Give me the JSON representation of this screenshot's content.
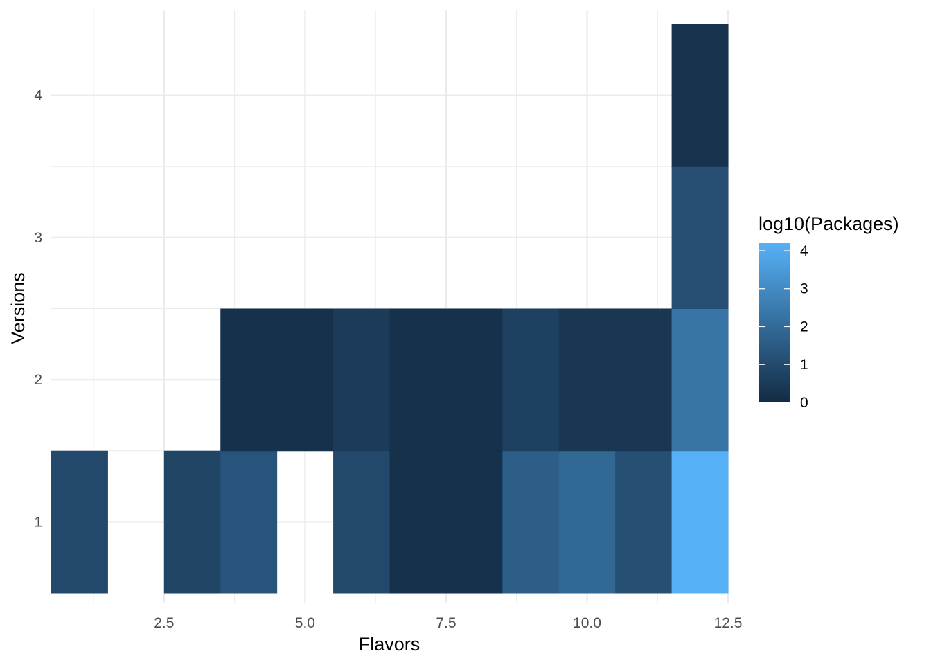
{
  "chart_data": {
    "type": "heatmap",
    "title": "",
    "xlabel": "Flavors",
    "ylabel": "Versions",
    "xlim": [
      0.5,
      12.5
    ],
    "ylim": [
      0.5,
      4.5
    ],
    "x_ticks": [
      {
        "value": 2.5,
        "label": "2.5"
      },
      {
        "value": 5.0,
        "label": "5.0"
      },
      {
        "value": 7.5,
        "label": "7.5"
      },
      {
        "value": 10.0,
        "label": "10.0"
      },
      {
        "value": 12.5,
        "label": "12.5"
      }
    ],
    "x_minor": [
      1.25,
      3.75,
      6.25,
      8.75,
      11.25
    ],
    "y_ticks": [
      {
        "value": 1,
        "label": "1"
      },
      {
        "value": 2,
        "label": "2"
      },
      {
        "value": 3,
        "label": "3"
      },
      {
        "value": 4,
        "label": "4"
      }
    ],
    "y_minor": [
      1.5,
      2.5,
      3.5
    ],
    "grid": true,
    "fill_label": "log10(Packages)",
    "color_scale": {
      "low": "#132B43",
      "high": "#56B1F7",
      "min": 0,
      "max": 4.2
    },
    "legend": {
      "title": "log10(Packages)",
      "position": "right",
      "breaks": [
        {
          "value": 0,
          "label": "0"
        },
        {
          "value": 1,
          "label": "1"
        },
        {
          "value": 2,
          "label": "2"
        },
        {
          "value": 3,
          "label": "3"
        },
        {
          "value": 4,
          "label": "4"
        }
      ]
    },
    "cells": [
      {
        "x": 1,
        "y": 1,
        "value": 0.95
      },
      {
        "x": 3,
        "y": 1,
        "value": 0.8
      },
      {
        "x": 4,
        "y": 1,
        "value": 1.3
      },
      {
        "x": 6,
        "y": 1,
        "value": 0.95
      },
      {
        "x": 7,
        "y": 1,
        "value": 0.2
      },
      {
        "x": 8,
        "y": 1,
        "value": 0.2
      },
      {
        "x": 9,
        "y": 1,
        "value": 1.6
      },
      {
        "x": 10,
        "y": 1,
        "value": 1.9
      },
      {
        "x": 11,
        "y": 1,
        "value": 1.15
      },
      {
        "x": 12,
        "y": 1,
        "value": 4.2
      },
      {
        "x": 4,
        "y": 2,
        "value": 0.2
      },
      {
        "x": 5,
        "y": 2,
        "value": 0.2
      },
      {
        "x": 6,
        "y": 2,
        "value": 0.5
      },
      {
        "x": 7,
        "y": 2,
        "value": 0.2
      },
      {
        "x": 8,
        "y": 2,
        "value": 0.2
      },
      {
        "x": 9,
        "y": 2,
        "value": 0.7
      },
      {
        "x": 10,
        "y": 2,
        "value": 0.35
      },
      {
        "x": 11,
        "y": 2,
        "value": 0.35
      },
      {
        "x": 12,
        "y": 2,
        "value": 2.3
      },
      {
        "x": 12,
        "y": 3,
        "value": 1.1
      },
      {
        "x": 12,
        "y": 4,
        "value": 0.25
      }
    ]
  }
}
